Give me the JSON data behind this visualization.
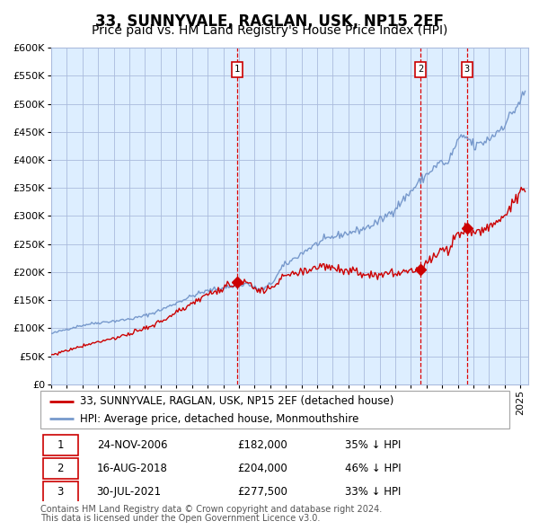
{
  "title": "33, SUNNYVALE, RAGLAN, USK, NP15 2EF",
  "subtitle": "Price paid vs. HM Land Registry's House Price Index (HPI)",
  "legend_red": "33, SUNNYVALE, RAGLAN, USK, NP15 2EF (detached house)",
  "legend_blue": "HPI: Average price, detached house, Monmouthshire",
  "footnote1": "Contains HM Land Registry data © Crown copyright and database right 2024.",
  "footnote2": "This data is licensed under the Open Government Licence v3.0.",
  "transactions": [
    {
      "id": 1,
      "date": "24-NOV-2006",
      "price": 182000,
      "hpi_pct": "35% ↓ HPI"
    },
    {
      "id": 2,
      "date": "16-AUG-2018",
      "price": 204000,
      "hpi_pct": "46% ↓ HPI"
    },
    {
      "id": 3,
      "date": "30-JUL-2021",
      "price": 277500,
      "hpi_pct": "33% ↓ HPI"
    }
  ],
  "sale_dates_decimal": [
    2006.9,
    2018.62,
    2021.58
  ],
  "sale_prices": [
    182000,
    204000,
    277500
  ],
  "ylim": [
    0,
    600000
  ],
  "xlim_start": 1995.0,
  "xlim_end": 2025.5,
  "plot_bg": "#ddeeff",
  "grid_color": "#aabbdd",
  "red_line_color": "#cc0000",
  "blue_line_color": "#7799cc",
  "vline_color": "#dd0000",
  "marker_color": "#cc0000",
  "box_edge_color": "#cc0000",
  "title_fontsize": 12,
  "subtitle_fontsize": 10,
  "tick_fontsize": 8,
  "legend_fontsize": 8.5,
  "footnote_fontsize": 7
}
